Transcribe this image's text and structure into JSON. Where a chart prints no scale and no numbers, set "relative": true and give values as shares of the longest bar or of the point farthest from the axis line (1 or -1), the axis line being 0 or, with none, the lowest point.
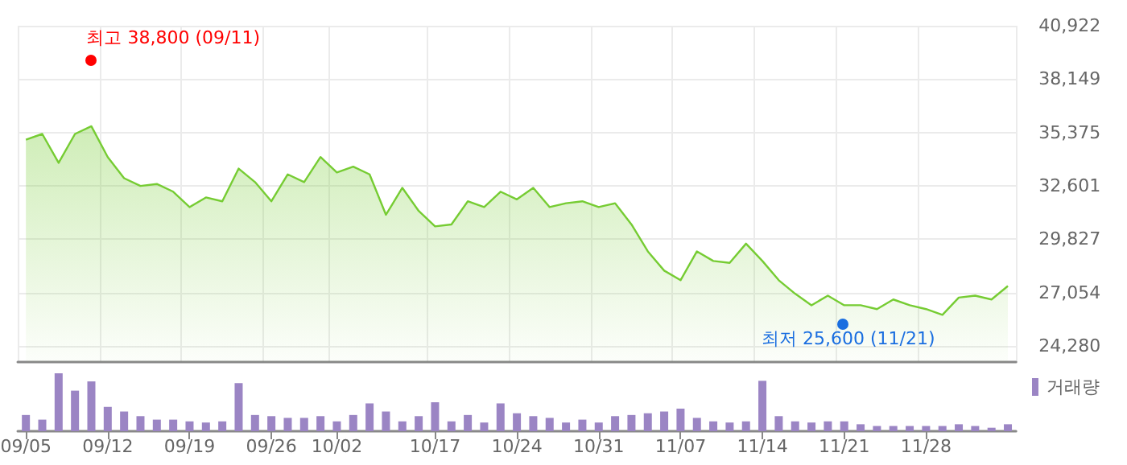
{
  "chart_data": [
    {
      "type": "area",
      "categories": [
        null,
        null,
        null,
        null,
        null,
        null,
        null,
        null,
        null,
        null,
        null,
        null,
        null,
        null,
        null,
        null,
        null,
        null,
        null,
        null,
        null,
        null,
        null,
        null,
        null,
        null,
        null,
        null,
        null,
        null,
        null,
        null,
        null,
        null,
        null,
        null,
        null,
        null,
        null,
        null,
        null,
        null,
        null,
        null,
        null,
        null,
        null,
        null,
        null,
        null,
        null,
        null,
        null,
        null,
        null,
        null,
        null,
        null,
        null,
        null,
        null
      ],
      "series": [
        {
          "color": "#76cc33",
          "values": [
            35000,
            35300,
            33800,
            35300,
            35700,
            34100,
            33000,
            32600,
            32700,
            32300,
            31500,
            32000,
            31800,
            33500,
            32800,
            31800,
            33200,
            32800,
            34100,
            33300,
            33600,
            33200,
            31100,
            32500,
            31300,
            30500,
            30600,
            31800,
            31500,
            32300,
            31900,
            32500,
            31500,
            31700,
            31800,
            31500,
            31700,
            30600,
            29200,
            28200,
            27700,
            29200,
            28700,
            28600,
            29600,
            28700,
            27700,
            27000,
            26400,
            26900,
            26400,
            26400,
            26200,
            26700,
            26400,
            26200,
            25900,
            26800,
            26900,
            26700,
            27400
          ]
        }
      ],
      "ylim": [
        23450,
        40922
      ],
      "yticks": [
        {
          "value": 24280,
          "label": "24,280"
        },
        {
          "value": 27054,
          "label": "27,054"
        },
        {
          "value": 29827,
          "label": "29,827"
        },
        {
          "value": 32601,
          "label": "32,601"
        },
        {
          "value": 35375,
          "label": "35,375"
        },
        {
          "value": 38149,
          "label": "38,149"
        },
        {
          "value": 40922,
          "label": "40,922"
        }
      ],
      "grid": true,
      "tick_labels": "y",
      "annotations": [
        "최고 38,800 (09/11)",
        "최저 25,600 (11/21)"
      ]
    },
    {
      "type": "bar",
      "relative": true,
      "categories": [
        "09/05",
        null,
        null,
        null,
        null,
        "09/12",
        null,
        null,
        null,
        null,
        "09/19",
        null,
        null,
        null,
        null,
        "09/26",
        null,
        null,
        null,
        "10/02",
        null,
        null,
        null,
        null,
        null,
        "10/17",
        null,
        null,
        null,
        null,
        "10/24",
        null,
        null,
        null,
        null,
        "10/31",
        null,
        null,
        null,
        null,
        "11/07",
        null,
        null,
        null,
        null,
        "11/14",
        null,
        null,
        null,
        null,
        "11/21",
        null,
        null,
        null,
        null,
        "11/28",
        null,
        null,
        null,
        null,
        null
      ],
      "series": [
        {
          "name": "거래량",
          "color": "#9b85c4",
          "values": [
            0.28,
            0.2,
            1,
            0.7,
            0.86,
            0.42,
            0.34,
            0.26,
            0.2,
            0.2,
            0.17,
            0.15,
            0.17,
            0.83,
            0.28,
            0.26,
            0.23,
            0.23,
            0.26,
            0.17,
            0.28,
            0.48,
            0.34,
            0.17,
            0.26,
            0.5,
            0.17,
            0.28,
            0.15,
            0.48,
            0.31,
            0.26,
            0.23,
            0.15,
            0.2,
            0.15,
            0.26,
            0.28,
            0.31,
            0.34,
            0.39,
            0.23,
            0.17,
            0.15,
            0.17,
            0.87,
            0.26,
            0.17,
            0.15,
            0.17,
            0.17,
            0.12,
            0.09,
            0.09,
            0.09,
            0.09,
            0.09,
            0.12,
            0.09,
            0.06,
            0.12
          ]
        }
      ],
      "legend": "top right",
      "tick_labels": "x"
    }
  ]
}
